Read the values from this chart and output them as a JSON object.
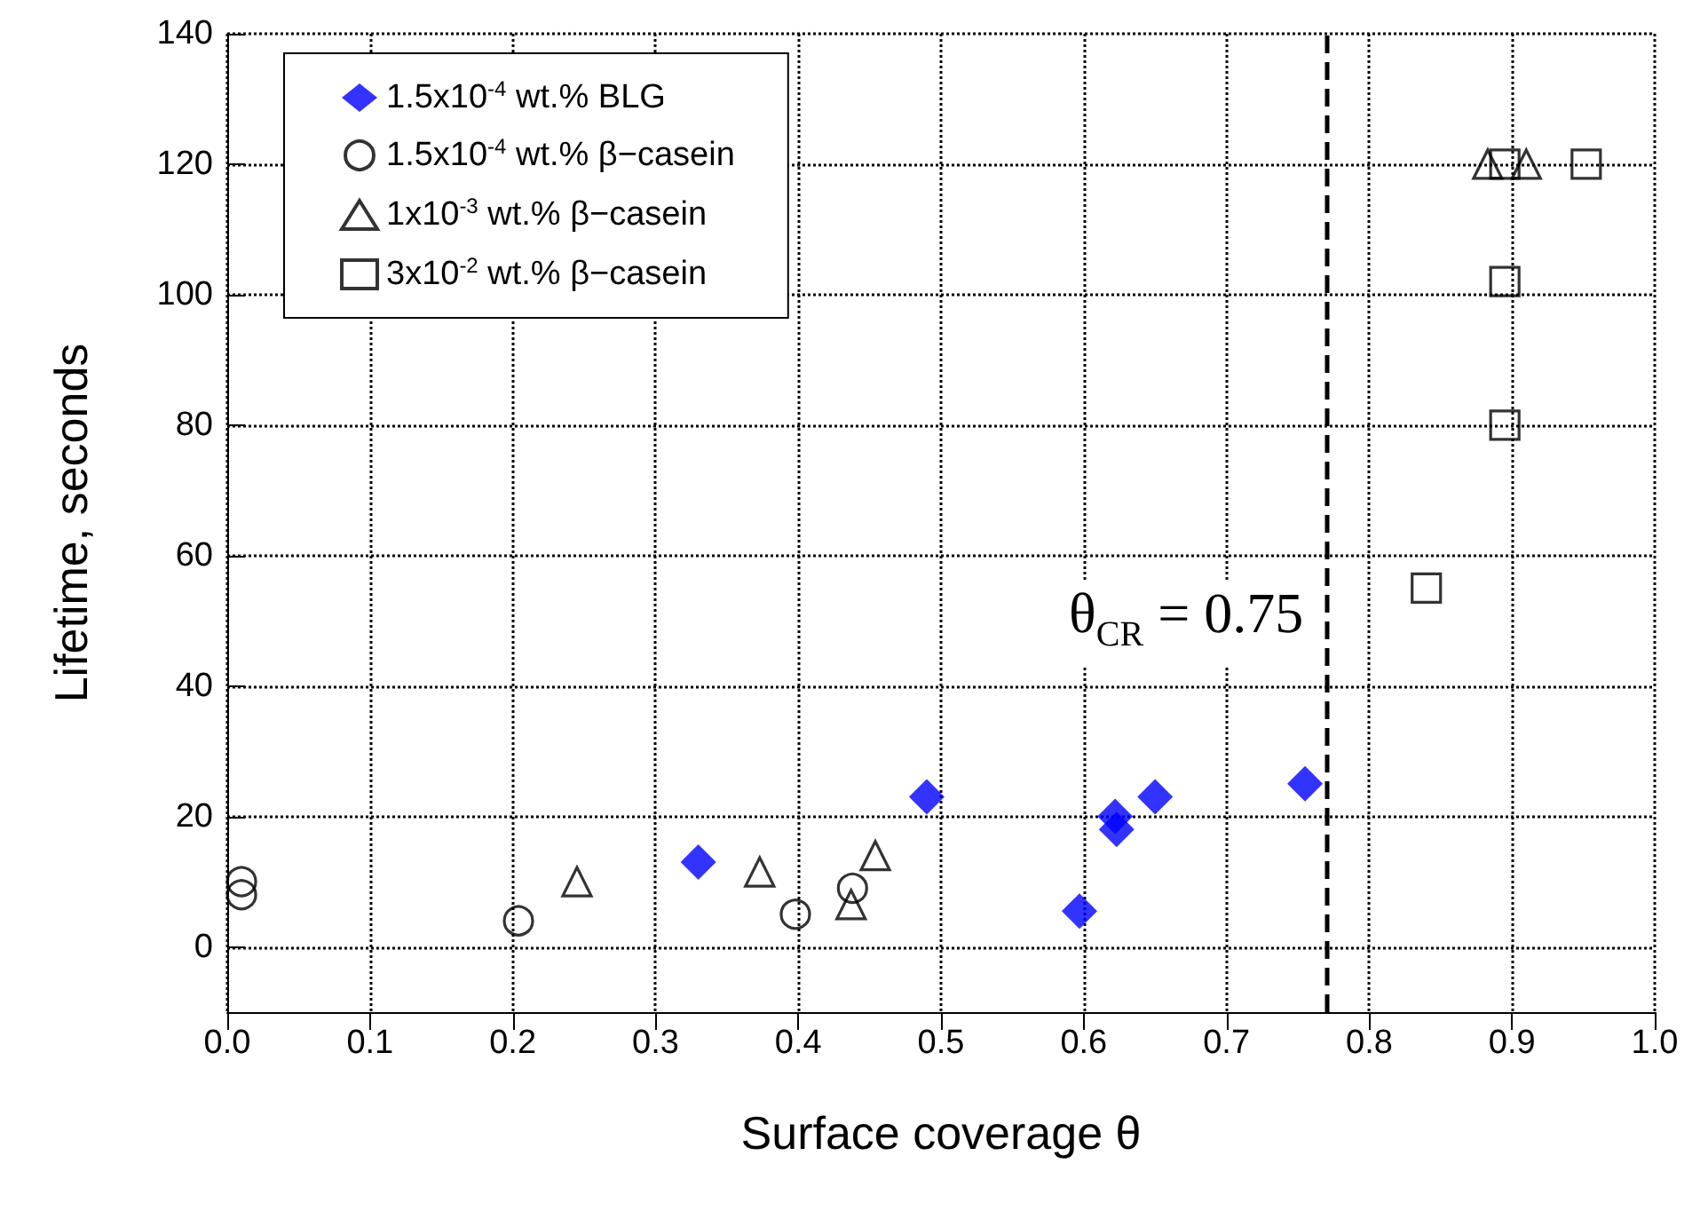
{
  "chart_data": {
    "type": "scatter",
    "xlabel": "Surface coverage θ",
    "ylabel": "Lifetime, seconds",
    "xlim": [
      0,
      1.0
    ],
    "xticks": [
      {
        "value": 0,
        "label": "0.0"
      },
      0.1,
      0.2,
      0.3,
      0.4,
      0.5,
      0.6,
      0.7,
      0.8,
      0.9,
      {
        "value": 1.0,
        "label": "1.0"
      }
    ],
    "ylim": [
      -10,
      140
    ],
    "yticks": [
      0,
      20,
      40,
      60,
      80,
      100,
      120,
      140
    ],
    "grid": true,
    "legend": "top left",
    "series": [
      {
        "name": "1.5x10$^{-4}$ wt.% BLG",
        "color": "#0000ff",
        "marker": "diamond",
        "x": [
          0.33,
          0.49,
          0.597,
          0.622,
          0.623,
          0.65,
          0.755
        ],
        "values": [
          13,
          23,
          5.5,
          20,
          18,
          23,
          25
        ]
      },
      {
        "name": "1.5x10$^{-4}$ wt.% β−casein",
        "color": "#000000",
        "marker": "circle",
        "x": [
          0.01,
          0.01,
          0.204,
          0.398,
          0.438
        ],
        "values": [
          10,
          8,
          4,
          5,
          9
        ]
      },
      {
        "name": "1x10$^{-3}$ wt.% β−casein",
        "color": "#000000",
        "marker": "triangle",
        "x": [
          0.245,
          0.373,
          0.437,
          0.454,
          0.883,
          0.91
        ],
        "values": [
          10,
          11.5,
          6.5,
          14,
          120,
          120
        ]
      },
      {
        "name": "3x10$^{-2}$ wt.% β−casein",
        "color": "#000000",
        "marker": "square",
        "x": [
          0.84,
          0.895,
          0.895,
          0.895,
          0.952
        ],
        "values": [
          55,
          80,
          102,
          120,
          120
        ]
      }
    ],
    "ref_lines": [
      {
        "axis": "x",
        "value": 0.771,
        "label": null,
        "color": "#000000",
        "line_style": "dashed"
      }
    ],
    "annotations": [
      {
        "text": "θ$_{CR}$ = 0.75",
        "x": 0.765,
        "y": 44
      }
    ]
  }
}
